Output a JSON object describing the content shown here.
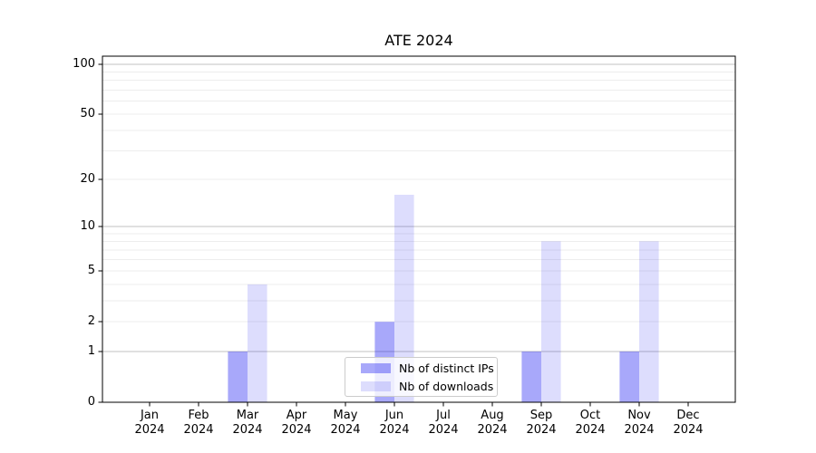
{
  "title": "ATE 2024",
  "chart_data": {
    "type": "bar",
    "title": "ATE 2024",
    "categories": [
      "Jan",
      "Feb",
      "Mar",
      "Apr",
      "May",
      "Jun",
      "Jul",
      "Aug",
      "Sep",
      "Oct",
      "Nov",
      "Dec"
    ],
    "category_year": "2024",
    "series": [
      {
        "name": "Nb of distinct IPs",
        "color": "rgba(0,0,240,0.34)",
        "color_hex_on_white": "#a9a9fa",
        "values": [
          0,
          0,
          1,
          0,
          0,
          2,
          0,
          0,
          1,
          0,
          1,
          0
        ]
      },
      {
        "name": "Nb of downloads",
        "color": "rgba(0,0,240,0.135)",
        "color_hex_on_white": "#dcdcfd",
        "values": [
          0,
          0,
          4,
          0,
          0,
          16,
          0,
          0,
          8,
          0,
          8,
          0
        ]
      }
    ],
    "xlabel": "",
    "ylabel": "",
    "y_scale": "log1p",
    "ylim": [
      0,
      112
    ],
    "y_ticks": [
      0,
      1,
      2,
      5,
      10,
      20,
      50,
      100
    ],
    "y_major_gridlines": [
      1,
      10,
      100
    ],
    "y_minor_gridlines": [
      2,
      3,
      4,
      5,
      6,
      7,
      8,
      9,
      20,
      30,
      40,
      50,
      60,
      70,
      80,
      90
    ],
    "grid": "on",
    "legend_position": "lower center inside plot",
    "colors": {
      "major_gridline": "#c2c2c2",
      "minor_gridline": "#ededed",
      "axis_spine": "#000000",
      "background": "#ffffff"
    }
  }
}
